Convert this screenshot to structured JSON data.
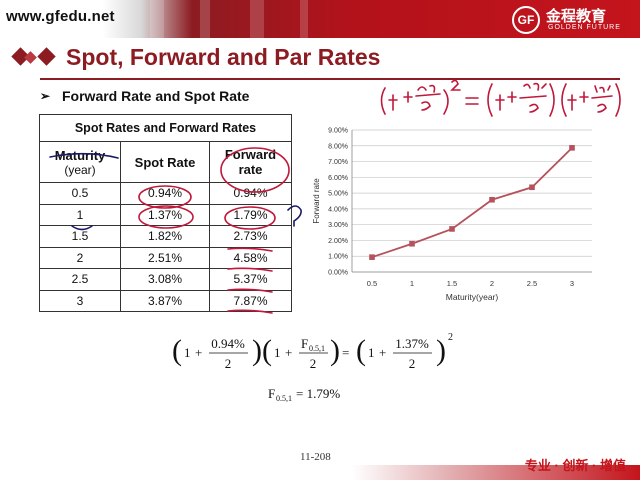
{
  "header": {
    "site_url": "www.gfedu.net",
    "logo_badge": "GF",
    "logo_cn": "金程教育",
    "logo_en": "GOLDEN FUTURE",
    "colors": {
      "brand_red": "#c4141c",
      "title_red": "#8c1c22"
    }
  },
  "slide": {
    "title": "Spot, Forward and Par Rates",
    "bullet": "Forward Rate and Spot Rate",
    "page_number": "11-208"
  },
  "table": {
    "caption": "Spot Rates and Forward Rates",
    "headers": [
      "Maturity (year)",
      "Spot Rate",
      "Forward rate"
    ],
    "header_lines": [
      [
        "Maturity",
        "(year)"
      ],
      [
        "Spot Rate"
      ],
      [
        "Forward",
        "rate"
      ]
    ],
    "rows": [
      [
        "0.5",
        "0.94%",
        "0.94%"
      ],
      [
        "1",
        "1.37%",
        "1.79%"
      ],
      [
        "1.5",
        "1.82%",
        "2.73%"
      ],
      [
        "2",
        "2.51%",
        "4.58%"
      ],
      [
        "2.5",
        "3.08%",
        "5.37%"
      ],
      [
        "3",
        "3.87%",
        "7.87%"
      ]
    ]
  },
  "chart_data": {
    "type": "line",
    "x": [
      "0.5",
      "1",
      "1.5",
      "2",
      "2.5",
      "3"
    ],
    "series": [
      {
        "values": [
          0.94,
          1.79,
          2.73,
          4.58,
          5.37,
          7.87
        ]
      }
    ],
    "xlabel": "Maturity(year)",
    "ylabel": "Forward rate",
    "yticks": [
      "0.00%",
      "1.00%",
      "2.00%",
      "3.00%",
      "4.00%",
      "5.00%",
      "6.00%",
      "7.00%",
      "8.00%",
      "9.00%"
    ],
    "ylim": [
      0,
      9
    ],
    "grid": true,
    "color": "#b5525c"
  },
  "formula": {
    "one": "1",
    "plus": "+",
    "equals": "=",
    "f1_num": "0.94%",
    "f1_den": "2",
    "f2_num": "F",
    "f2_sub": "0.5,1",
    "f2_den": "2",
    "f3_num": "1.37%",
    "f3_den": "2",
    "exponent": "2",
    "result_var": "F",
    "result_sub": "0.5,1",
    "result_value": "= 1.79%"
  },
  "footer": {
    "slogan": "专业 · 创新 · 增值"
  }
}
